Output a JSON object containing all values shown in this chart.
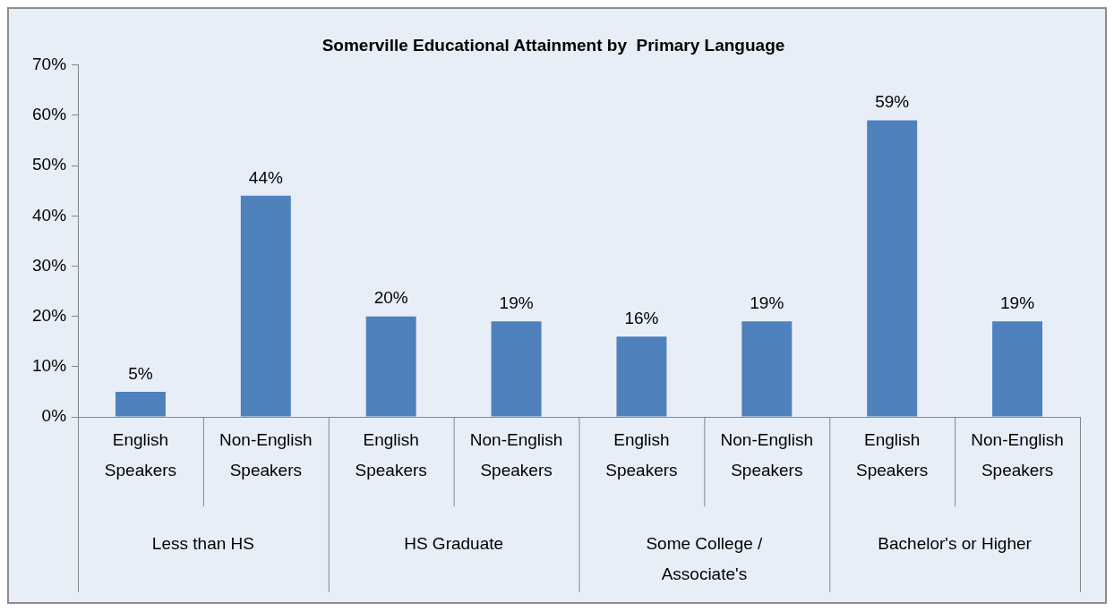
{
  "chart_data": {
    "type": "bar",
    "title": "Somerville Educational Attainment by  Primary Language",
    "categories": [
      "Less than HS",
      "HS Graduate",
      "Some College / Associate's",
      "Bachelor's or Higher"
    ],
    "series": [
      {
        "name": "English Speakers",
        "color": "#4f81bd",
        "values": [
          5,
          20,
          16,
          59
        ],
        "value_labels": [
          "5%",
          "20%",
          "16%",
          "59%"
        ]
      },
      {
        "name": "Non-English Speakers",
        "color": "#4f81bd",
        "values": [
          44,
          19,
          19,
          19
        ],
        "value_labels": [
          "44%",
          "19%",
          "19%",
          "19%"
        ]
      }
    ],
    "ylim": [
      0,
      70
    ],
    "yticks": [
      {
        "value": 0,
        "label": "0%"
      },
      {
        "value": 10,
        "label": "10%"
      },
      {
        "value": 20,
        "label": "20%"
      },
      {
        "value": 30,
        "label": "30%"
      },
      {
        "value": 40,
        "label": "40%"
      },
      {
        "value": 50,
        "label": "50%"
      },
      {
        "value": 60,
        "label": "60%"
      },
      {
        "value": 70,
        "label": "70%"
      }
    ]
  }
}
